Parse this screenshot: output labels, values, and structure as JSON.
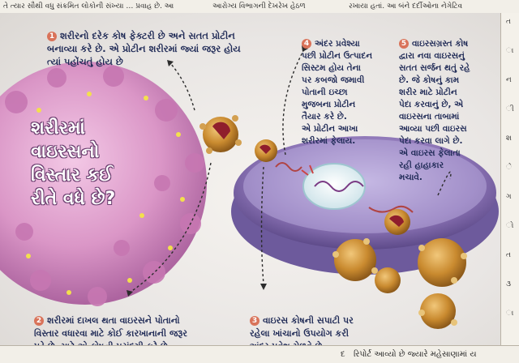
{
  "header_strip": {
    "left_text": "તે ત્યાર સૌથી વધુ સંક્રમિત લોકોની સંખ્યા … પ્રવાહ છે. આ",
    "mid_text": "આરોગ્ય વિભાગની દેખરેખ હેઠળ",
    "right_text": "રખાયા હતાં. આ બંને દર્દીઓના નેગેટિવ"
  },
  "infographic": {
    "title": "શરીરમાં\nવાઇરસનો\nવિસ્તાર કઈ\nરીતે વધે છે?",
    "steps": [
      {
        "number": "1",
        "text": "શરીરનો દરેક કોષ ફેક્ટરી છે અને સતત પ્રોટીન\nબનાવ્યા કરે છે. એ પ્રોટીન શરીરમાં જ્યાં જરૂર હોય\nત્યાં પહોંચતું હોય છે"
      },
      {
        "number": "2",
        "text": "શરીરમાં દાખલ થતા વાઇરસને પોતાનો\nવિસ્તાર વધારવા માટે કોઈ કારખાનાની જરૂર\nપડે છે, માટે એ કોષની પસંદગી કરે છે."
      },
      {
        "number": "3",
        "text": "વાઇરસ કોષની સપાટી પર\nરહેલા ખાંચાનો ઉપયોગ કરી\nઅંદર પ્રવેશ મેળવે છે."
      },
      {
        "number": "4",
        "text": "અંદર પ્રવેશ્યા\nપછી પ્રોટીન ઉત્પાદન\nસિસ્ટમ હોય તેના\nપર કબજો જમાવી\nપોતાની ઇચ્છા\nમુજબના પ્રોટીન\nતૈયાર કરે છે.\nએ પ્રોટીન આખા\nશરીરમાં ફેલાય."
      },
      {
        "number": "5",
        "text": "વાઇરસગ્રસ્ત કોષ\nદ્વારા નવા વાઇરસનું\nસતત સર્જન થતું રહે\nછે. જે કોષનું કામ\nશરીર માટે પ્રોટીન\nપેદા કરવાનું છે, એ\nવાઇરસના તાબામાં\nઆવ્યા પછી વાઇરસ\nપેદા કરવા લાગે છે.\nએ વાઇરસ ફેલાતા\nરહી હાહાકાર\nમચાવે."
      }
    ]
  },
  "right_column": {
    "chars": [
      "ત",
      "ા",
      "ન",
      "ી",
      "શ",
      "ે",
      "ગ",
      "ો",
      "ત",
      "૩",
      "ા"
    ]
  },
  "footer_strip": {
    "left_text": "દ",
    "right_text": "રિપોર્ટ આવ્યો છે જ્યારે  મહેસાણામાં ય"
  },
  "colors": {
    "text_navy": "#1f2a56",
    "number_badge": "#d9735a",
    "virus_pink": "#d98fc4",
    "virus_orange": "#c98a2f",
    "cell_violet": "#8b73b5"
  }
}
